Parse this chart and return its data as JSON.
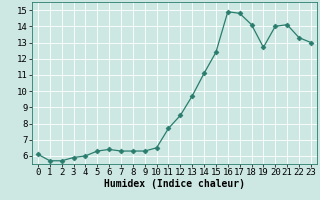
{
  "x": [
    0,
    1,
    2,
    3,
    4,
    5,
    6,
    7,
    8,
    9,
    10,
    11,
    12,
    13,
    14,
    15,
    16,
    17,
    18,
    19,
    20,
    21,
    22,
    23
  ],
  "y": [
    6.1,
    5.7,
    5.7,
    5.9,
    6.0,
    6.3,
    6.4,
    6.3,
    6.3,
    6.3,
    6.5,
    7.7,
    8.5,
    9.7,
    11.1,
    12.4,
    14.9,
    14.8,
    14.1,
    12.7,
    14.0,
    14.1,
    13.3,
    13.0
  ],
  "line_color": "#2a7d6e",
  "marker": "D",
  "marker_size": 2.5,
  "bg_color": "#cde8e3",
  "grid_color": "#b0d8d2",
  "xlabel": "Humidex (Indice chaleur)",
  "xlim": [
    -0.5,
    23.5
  ],
  "ylim": [
    5.5,
    15.5
  ],
  "yticks": [
    6,
    7,
    8,
    9,
    10,
    11,
    12,
    13,
    14,
    15
  ],
  "xticks": [
    0,
    1,
    2,
    3,
    4,
    5,
    6,
    7,
    8,
    9,
    10,
    11,
    12,
    13,
    14,
    15,
    16,
    17,
    18,
    19,
    20,
    21,
    22,
    23
  ],
  "label_fontsize": 7,
  "tick_fontsize": 6.5
}
